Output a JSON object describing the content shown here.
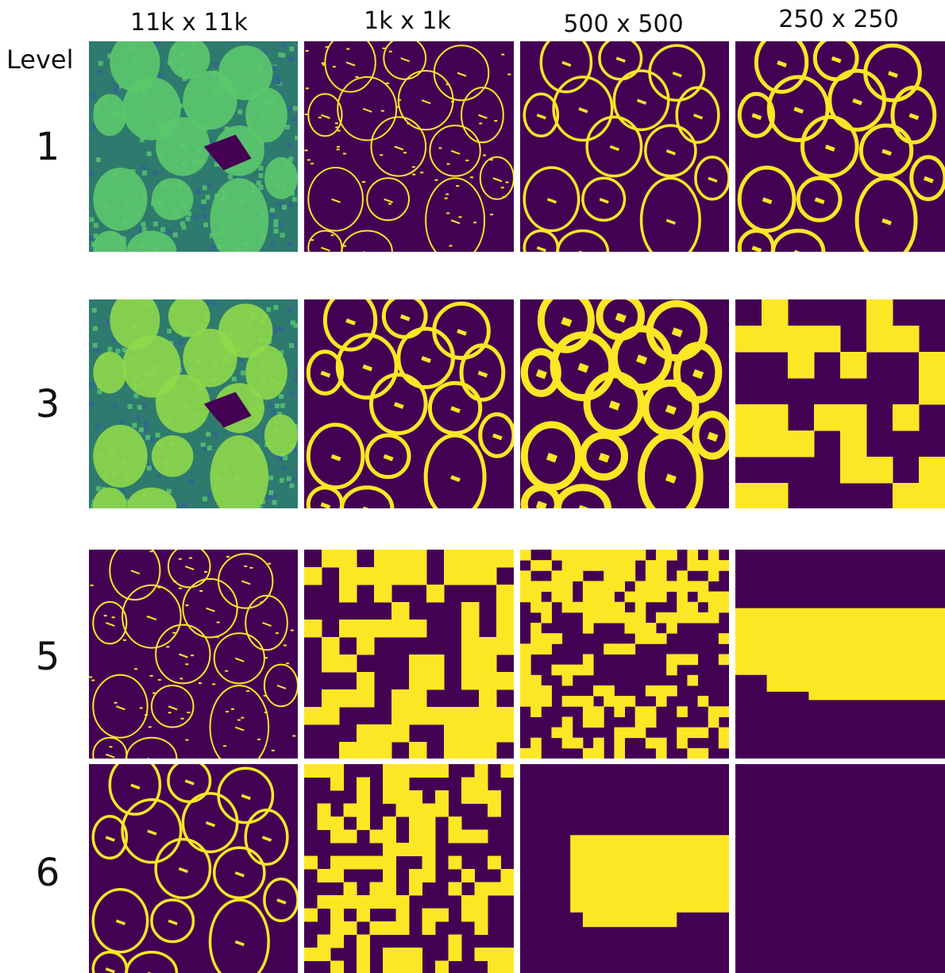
{
  "column_headers": [
    "11k x 11k",
    "1k x 1k",
    "500 x 500",
    "250 x 250"
  ],
  "row_axis_label": "Level",
  "row_labels": [
    "1",
    "3",
    "5",
    "6"
  ]
}
